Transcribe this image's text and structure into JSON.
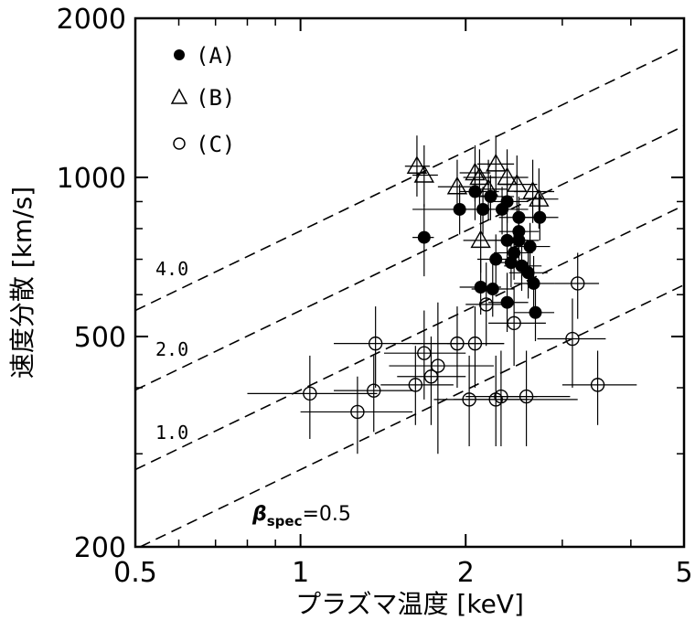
{
  "chart_data": {
    "type": "scatter",
    "xlabel": "プラズマ温度 [keV]",
    "ylabel": "速度分散 [km/s]",
    "xscale": "log",
    "yscale": "log",
    "xlim": [
      0.5,
      5
    ],
    "ylim": [
      200,
      2000
    ],
    "xticks": [
      0.5,
      1,
      2,
      5
    ],
    "xtick_labels": [
      "0.5",
      "1",
      "2",
      "5"
    ],
    "yticks": [
      200,
      500,
      1000,
      2000
    ],
    "ytick_labels": [
      "200",
      "500",
      "1000",
      "2000"
    ],
    "legend_position": "top-left",
    "series": [
      {
        "name": "(A)",
        "marker": "filled-circle",
        "points": [
          {
            "x": 1.68,
            "y": 770,
            "xlo": 1.6,
            "xhi": 1.75,
            "ylo": 650,
            "yhi": 890
          },
          {
            "x": 1.95,
            "y": 870,
            "xlo": 1.6,
            "xhi": 2.2,
            "ylo": 780,
            "yhi": 970
          },
          {
            "x": 2.08,
            "y": 940,
            "xlo": 1.95,
            "xhi": 2.3,
            "ylo": 830,
            "yhi": 1050
          },
          {
            "x": 2.15,
            "y": 870,
            "xlo": 1.95,
            "xhi": 2.4,
            "ylo": 780,
            "yhi": 960
          },
          {
            "x": 2.22,
            "y": 920,
            "xlo": 2.05,
            "xhi": 2.45,
            "ylo": 830,
            "yhi": 1010
          },
          {
            "x": 2.33,
            "y": 870,
            "xlo": 2.15,
            "xhi": 2.6,
            "ylo": 780,
            "yhi": 960
          },
          {
            "x": 2.38,
            "y": 900,
            "xlo": 2.2,
            "xhi": 2.6,
            "ylo": 820,
            "yhi": 990
          },
          {
            "x": 2.5,
            "y": 840,
            "xlo": 2.3,
            "xhi": 2.72,
            "ylo": 760,
            "yhi": 920
          },
          {
            "x": 2.73,
            "y": 840,
            "xlo": 2.55,
            "xhi": 2.95,
            "ylo": 760,
            "yhi": 920
          },
          {
            "x": 2.5,
            "y": 790,
            "xlo": 2.3,
            "xhi": 2.72,
            "ylo": 710,
            "yhi": 870
          },
          {
            "x": 2.38,
            "y": 760,
            "xlo": 2.2,
            "xhi": 2.6,
            "ylo": 680,
            "yhi": 840
          },
          {
            "x": 2.5,
            "y": 760,
            "xlo": 2.3,
            "xhi": 2.72,
            "ylo": 680,
            "yhi": 840
          },
          {
            "x": 2.62,
            "y": 740,
            "xlo": 2.45,
            "xhi": 2.85,
            "ylo": 660,
            "yhi": 820
          },
          {
            "x": 2.45,
            "y": 720,
            "xlo": 2.25,
            "xhi": 2.65,
            "ylo": 640,
            "yhi": 800
          },
          {
            "x": 2.27,
            "y": 700,
            "xlo": 2.1,
            "xhi": 2.45,
            "ylo": 620,
            "yhi": 780
          },
          {
            "x": 2.42,
            "y": 690,
            "xlo": 2.25,
            "xhi": 2.6,
            "ylo": 620,
            "yhi": 770
          },
          {
            "x": 2.53,
            "y": 680,
            "xlo": 2.35,
            "xhi": 2.75,
            "ylo": 610,
            "yhi": 760
          },
          {
            "x": 2.6,
            "y": 660,
            "xlo": 2.4,
            "xhi": 2.82,
            "ylo": 590,
            "yhi": 740
          },
          {
            "x": 2.13,
            "y": 620,
            "xlo": 1.95,
            "xhi": 2.32,
            "ylo": 550,
            "yhi": 700
          },
          {
            "x": 2.24,
            "y": 615,
            "xlo": 2.05,
            "xhi": 2.45,
            "ylo": 545,
            "yhi": 690
          },
          {
            "x": 2.66,
            "y": 630,
            "xlo": 2.45,
            "xhi": 2.9,
            "ylo": 560,
            "yhi": 710
          },
          {
            "x": 2.38,
            "y": 580,
            "xlo": 2.2,
            "xhi": 2.6,
            "ylo": 510,
            "yhi": 660
          },
          {
            "x": 2.68,
            "y": 555,
            "xlo": 2.45,
            "xhi": 2.9,
            "ylo": 490,
            "yhi": 630
          }
        ]
      },
      {
        "name": "(B)",
        "marker": "open-triangle",
        "points": [
          {
            "x": 1.63,
            "y": 1050,
            "xlo": 1.55,
            "xhi": 1.72,
            "ylo": 920,
            "yhi": 1200
          },
          {
            "x": 1.68,
            "y": 1010,
            "xlo": 1.6,
            "xhi": 1.78,
            "ylo": 880,
            "yhi": 1150
          },
          {
            "x": 1.93,
            "y": 960,
            "xlo": 1.78,
            "xhi": 2.1,
            "ylo": 850,
            "yhi": 1080
          },
          {
            "x": 2.08,
            "y": 1020,
            "xlo": 1.95,
            "xhi": 2.22,
            "ylo": 900,
            "yhi": 1150
          },
          {
            "x": 2.12,
            "y": 1000,
            "xlo": 1.98,
            "xhi": 2.28,
            "ylo": 880,
            "yhi": 1130
          },
          {
            "x": 2.27,
            "y": 1060,
            "xlo": 2.1,
            "xhi": 2.45,
            "ylo": 930,
            "yhi": 1200
          },
          {
            "x": 2.38,
            "y": 1000,
            "xlo": 2.2,
            "xhi": 2.6,
            "ylo": 880,
            "yhi": 1130
          },
          {
            "x": 2.48,
            "y": 970,
            "xlo": 2.3,
            "xhi": 2.7,
            "ylo": 850,
            "yhi": 1100
          },
          {
            "x": 2.65,
            "y": 940,
            "xlo": 2.45,
            "xhi": 2.9,
            "ylo": 820,
            "yhi": 1080
          },
          {
            "x": 2.2,
            "y": 950,
            "xlo": 2.05,
            "xhi": 2.38,
            "ylo": 830,
            "yhi": 1080
          },
          {
            "x": 2.72,
            "y": 910,
            "xlo": 2.5,
            "xhi": 2.95,
            "ylo": 800,
            "yhi": 1040
          },
          {
            "x": 2.13,
            "y": 760,
            "xlo": 1.98,
            "xhi": 2.3,
            "ylo": 660,
            "yhi": 880
          }
        ]
      },
      {
        "name": "(C)",
        "marker": "open-circle",
        "points": [
          {
            "x": 1.04,
            "y": 390,
            "xlo": 0.8,
            "xhi": 1.38,
            "ylo": 320,
            "yhi": 460
          },
          {
            "x": 1.27,
            "y": 360,
            "xlo": 1.0,
            "xhi": 1.6,
            "ylo": 300,
            "yhi": 420
          },
          {
            "x": 1.36,
            "y": 395,
            "xlo": 1.15,
            "xhi": 1.6,
            "ylo": 330,
            "yhi": 460
          },
          {
            "x": 1.37,
            "y": 485,
            "xlo": 1.15,
            "xhi": 1.95,
            "ylo": 400,
            "yhi": 570
          },
          {
            "x": 1.62,
            "y": 405,
            "xlo": 1.4,
            "xhi": 1.9,
            "ylo": 340,
            "yhi": 480
          },
          {
            "x": 1.68,
            "y": 465,
            "xlo": 1.42,
            "xhi": 2.0,
            "ylo": 380,
            "yhi": 560
          },
          {
            "x": 1.73,
            "y": 420,
            "xlo": 1.5,
            "xhi": 2.0,
            "ylo": 340,
            "yhi": 500
          },
          {
            "x": 1.78,
            "y": 440,
            "xlo": 1.45,
            "xhi": 2.25,
            "ylo": 300,
            "yhi": 580
          },
          {
            "x": 1.93,
            "y": 485,
            "xlo": 1.6,
            "xhi": 2.35,
            "ylo": 400,
            "yhi": 570
          },
          {
            "x": 2.03,
            "y": 380,
            "xlo": 1.75,
            "xhi": 3.2,
            "ylo": 310,
            "yhi": 460
          },
          {
            "x": 2.08,
            "y": 485,
            "xlo": 1.85,
            "xhi": 2.35,
            "ylo": 400,
            "yhi": 570
          },
          {
            "x": 2.18,
            "y": 575,
            "xlo": 2.0,
            "xhi": 2.45,
            "ylo": 480,
            "yhi": 690
          },
          {
            "x": 2.27,
            "y": 380,
            "xlo": 1.9,
            "xhi": 2.6,
            "ylo": 310,
            "yhi": 460
          },
          {
            "x": 2.32,
            "y": 385,
            "xlo": 2.0,
            "xhi": 2.7,
            "ylo": 310,
            "yhi": 470
          },
          {
            "x": 2.45,
            "y": 530,
            "xlo": 2.2,
            "xhi": 2.8,
            "ylo": 440,
            "yhi": 620
          },
          {
            "x": 2.58,
            "y": 385,
            "xlo": 2.2,
            "xhi": 3.1,
            "ylo": 310,
            "yhi": 470
          },
          {
            "x": 3.13,
            "y": 495,
            "xlo": 2.7,
            "xhi": 3.6,
            "ylo": 400,
            "yhi": 590
          },
          {
            "x": 3.2,
            "y": 630,
            "xlo": 2.9,
            "xhi": 3.5,
            "ylo": 540,
            "yhi": 720
          },
          {
            "x": 3.48,
            "y": 405,
            "xlo": 3.0,
            "xhi": 4.1,
            "ylo": 340,
            "yhi": 470
          }
        ]
      }
    ],
    "reference_lines": [
      {
        "label": "4.0",
        "beta": 4.0,
        "style": "dashed"
      },
      {
        "label": "2.0",
        "beta": 2.0,
        "style": "dashed"
      },
      {
        "label": "1.0",
        "beta": 1.0,
        "style": "dashed"
      },
      {
        "label": "β",
        "subscript": "spec",
        "suffix": "=0.5",
        "beta": 0.5,
        "style": "dashed"
      }
    ]
  }
}
